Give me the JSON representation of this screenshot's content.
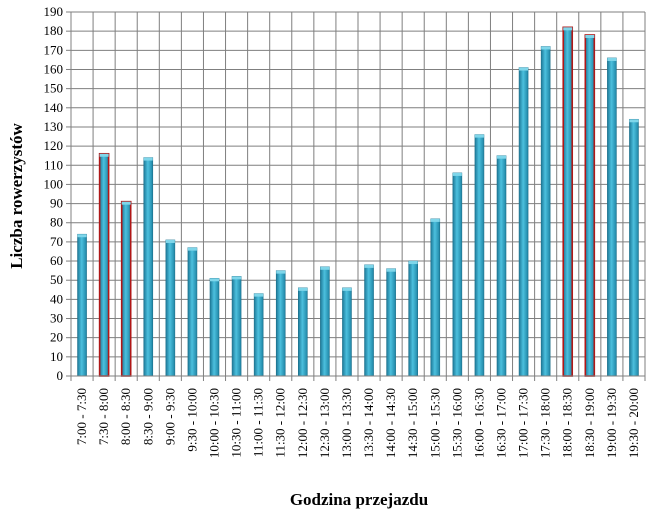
{
  "chart_data": {
    "type": "bar",
    "title": "",
    "xlabel": "Godzina przejazdu",
    "ylabel": "Liczba rowerzystów",
    "ylim": [
      0,
      190
    ],
    "y_ticks": [
      0,
      10,
      20,
      30,
      40,
      50,
      60,
      70,
      80,
      90,
      100,
      110,
      120,
      130,
      140,
      150,
      160,
      170,
      180,
      190
    ],
    "grid": "horizontal and vertical",
    "legend": "none",
    "categories": [
      "7:00 - 7:30",
      "7:30 - 8:00",
      "8:00 - 8:30",
      "8:30 - 9:00",
      "9:00 - 9:30",
      "9:30 - 10:00",
      "10:00 - 10:30",
      "10:30 - 11:00",
      "11:00 - 11:30",
      "11:30 - 12:00",
      "12:00 - 12:30",
      "12:30 - 13:00",
      "13:00 - 13:30",
      "13:30 - 14:00",
      "14:00 - 14:30",
      "14:30 - 15:00",
      "15:00 - 15:30",
      "15:30 - 16:00",
      "16:00 - 16:30",
      "16:30 - 17:00",
      "17:00 - 17:30",
      "17:30 - 18:00",
      "18:00 - 18:30",
      "18:30 - 19:00",
      "19:00 - 19:30",
      "19:30 - 20:00"
    ],
    "values": [
      74,
      116,
      91,
      114,
      71,
      67,
      51,
      52,
      43,
      55,
      46,
      57,
      46,
      58,
      56,
      60,
      82,
      106,
      126,
      115,
      161,
      172,
      182,
      178,
      166,
      134
    ],
    "highlighted_categories": [
      "7:30 - 8:00",
      "8:00 - 8:30",
      "18:00 - 18:30",
      "18:30 - 19:00"
    ],
    "colors": {
      "bar_fill": "#2f9fc0",
      "bar_top": "#7fd6ea",
      "bar_outline": "#1e6f8a",
      "highlight_outline": "#b01818",
      "grid": "#7f7f7f",
      "axis": "#808080"
    }
  }
}
